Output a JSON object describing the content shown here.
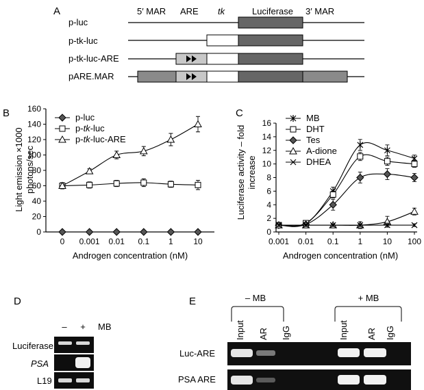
{
  "panel_labels": {
    "a": "A",
    "b": "B",
    "c": "C",
    "d": "D",
    "e": "E"
  },
  "panel_a": {
    "headers": {
      "mar5": "5′ MAR",
      "are": "ARE",
      "tk": "tk",
      "luciferase": "Luciferase",
      "mar3": "3′ MAR"
    },
    "constructs": [
      "p-luc",
      "p-tk-luc",
      "p-tk-luc-ARE",
      "pARE.MAR"
    ]
  },
  "chart_data": [
    {
      "panel": "B",
      "type": "line",
      "xlabel": "Androgen concentration (nM)",
      "ylabel_line1": "Light emission ×1000",
      "ylabel_line2": "photons/sec",
      "categories": [
        "0",
        "0.001",
        "0.01",
        "0.1",
        "1",
        "10"
      ],
      "ylim": [
        0,
        160
      ],
      "yticks": [
        0,
        20,
        40,
        60,
        80,
        100,
        120,
        140,
        160
      ],
      "legend_position": "top-left",
      "series": [
        {
          "name": "p-luc",
          "marker": "diamond",
          "values": [
            0,
            0,
            0,
            0,
            0,
            0
          ],
          "errors": [
            0,
            0,
            0,
            0,
            0,
            0
          ]
        },
        {
          "name": "p-tk-luc",
          "marker": "square",
          "values": [
            60,
            61,
            63,
            64,
            62,
            61
          ],
          "errors": [
            4,
            4,
            4,
            5,
            4,
            6
          ]
        },
        {
          "name": "p-tk-luc-ARE",
          "marker": "triangle",
          "values": [
            60,
            79,
            100,
            105,
            120,
            140
          ],
          "errors": [
            4,
            3,
            5,
            6,
            8,
            10
          ]
        }
      ]
    },
    {
      "panel": "C",
      "type": "line",
      "xlabel": "Androgen concentration (nM)",
      "ylabel_line1": "Luciferase activity – fold",
      "ylabel_line2": "increase",
      "categories": [
        "0.001",
        "0.01",
        "0.1",
        "1",
        "10",
        "100"
      ],
      "ylim": [
        0,
        16
      ],
      "yticks": [
        0,
        2,
        4,
        6,
        8,
        10,
        12,
        14,
        16
      ],
      "legend_position": "top-left",
      "series": [
        {
          "name": "MB",
          "marker": "star",
          "values": [
            1,
            1.2,
            6,
            12.8,
            12,
            10.8
          ],
          "errors": [
            0.2,
            0.3,
            0.6,
            0.8,
            0.8,
            0.5
          ]
        },
        {
          "name": "DHT",
          "marker": "square",
          "values": [
            1,
            1.3,
            5.5,
            11.1,
            10.4,
            10
          ],
          "errors": [
            0.2,
            0.3,
            0.5,
            0.6,
            0.6,
            0.5
          ]
        },
        {
          "name": "Tes",
          "marker": "diamond",
          "values": [
            1,
            1.1,
            4,
            8,
            8.5,
            8
          ],
          "errors": [
            0.2,
            0.3,
            0.8,
            0.8,
            0.8,
            0.6
          ]
        },
        {
          "name": "A-dione",
          "marker": "triangle",
          "values": [
            1,
            1,
            1,
            1,
            1.5,
            3
          ],
          "errors": [
            0.2,
            0.2,
            0.2,
            0.5,
            0.8,
            0.5
          ]
        },
        {
          "name": "DHEA",
          "marker": "x",
          "values": [
            1,
            1,
            1,
            1,
            1,
            1
          ],
          "errors": [
            0.2,
            0.2,
            0.2,
            0.2,
            0.3,
            0.2
          ]
        }
      ]
    }
  ],
  "panel_d": {
    "header_minus": "–",
    "header_plus": "+",
    "header_mb": "MB",
    "rows": [
      "Luciferase",
      "PSA",
      "L19"
    ]
  },
  "panel_e": {
    "group_minus": "– MB",
    "group_plus": "+ MB",
    "lanes": [
      "Input",
      "AR",
      "IgG"
    ],
    "rows": [
      "Luc-ARE",
      "PSA ARE"
    ]
  }
}
